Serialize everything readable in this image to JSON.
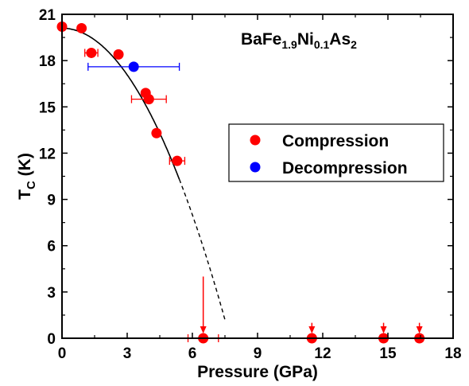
{
  "chart_data": {
    "type": "scatter",
    "title": "",
    "xlabel": "Pressure (GPa)",
    "ylabel": {
      "main": "T",
      "sub": "C",
      "unit": " (K)"
    },
    "xlim": [
      0,
      18
    ],
    "ylim": [
      0,
      21
    ],
    "x_ticks": [
      "0",
      "3",
      "6",
      "9",
      "12",
      "15",
      "18"
    ],
    "y_ticks": [
      "0",
      "3",
      "6",
      "9",
      "12",
      "15",
      "18",
      "21"
    ],
    "grid": false,
    "legend_position": "right-middle",
    "annotation": {
      "parts": [
        {
          "text": "BaFe",
          "sub": false
        },
        {
          "text": "1.9",
          "sub": true
        },
        {
          "text": "Ni",
          "sub": false
        },
        {
          "text": "0.1",
          "sub": true
        },
        {
          "text": "As",
          "sub": false
        },
        {
          "text": "2",
          "sub": true
        }
      ]
    },
    "series": [
      {
        "name": "Compression",
        "color": "#ff0000",
        "points": [
          {
            "x": 0.0,
            "y": 20.2
          },
          {
            "x": 0.9,
            "y": 20.1
          },
          {
            "x": 1.35,
            "y": 18.5,
            "xerr": 0.3
          },
          {
            "x": 2.6,
            "y": 18.4
          },
          {
            "x": 3.85,
            "y": 15.9
          },
          {
            "x": 4.0,
            "y": 15.5,
            "xerr": 0.8
          },
          {
            "x": 4.35,
            "y": 13.3
          },
          {
            "x": 5.3,
            "y": 11.5,
            "xerr": 0.35
          },
          {
            "x": 6.5,
            "y": 0.0,
            "xerr": 0.7,
            "arrow_top": 4.0
          },
          {
            "x": 11.5,
            "y": 0.0,
            "xerr": 0.1,
            "arrow_top": 1.0
          },
          {
            "x": 14.8,
            "y": 0.0,
            "xerr": 0.15,
            "arrow_top": 1.0
          },
          {
            "x": 16.45,
            "y": 0.0,
            "xerr": 0.15,
            "arrow_top": 1.0
          }
        ]
      },
      {
        "name": "Decompression",
        "color": "#0000ff",
        "points": [
          {
            "x": 3.3,
            "y": 17.6,
            "xerr": 2.1
          }
        ]
      }
    ],
    "fit_curve": {
      "color": "#000000",
      "form": "y = a - b*x^2",
      "a": 20.1,
      "b": 0.336,
      "solid_until_x": 5.4,
      "dashed_until_x": 7.5
    },
    "baseline": {
      "y": 0,
      "style": "dashed"
    }
  }
}
